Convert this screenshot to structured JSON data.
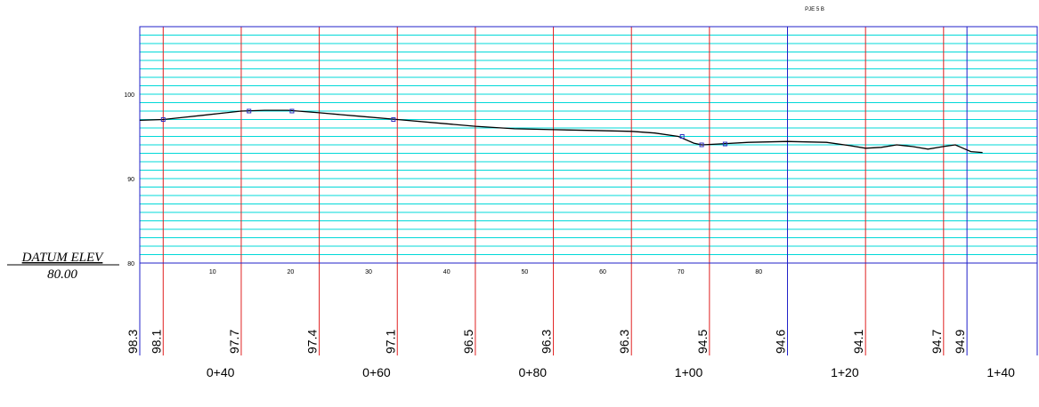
{
  "header_label": "PJE 5 B",
  "datum": {
    "label": "DATUM ELEV",
    "value": "80.00"
  },
  "colors": {
    "frame": "#2020c8",
    "fine_grid": "#00d8d8",
    "station_line": "#e02020",
    "ground_line": "#000000",
    "vertex": "#3030c0",
    "background": "#ffffff"
  },
  "chart_data": {
    "type": "line",
    "title": "",
    "xlabel": "",
    "ylabel": "",
    "elev_range": [
      80,
      108
    ],
    "elev_grid_interval": 1,
    "elev_tick_labels": [
      {
        "elev": 80,
        "text": "80"
      },
      {
        "elev": 90,
        "text": "90"
      },
      {
        "elev": 100,
        "text": "100"
      }
    ],
    "station_range": [
      30,
      145
    ],
    "station_tick_labels": [
      {
        "station": 40,
        "text": "0+40"
      },
      {
        "station": 60,
        "text": "0+60"
      },
      {
        "station": 80,
        "text": "0+80"
      },
      {
        "station": 100,
        "text": "1+00"
      },
      {
        "station": 120,
        "text": "1+20"
      },
      {
        "station": 140,
        "text": "1+40"
      }
    ],
    "offset_ticks": [
      {
        "station": 40,
        "text": "10"
      },
      {
        "station": 50,
        "text": "20"
      },
      {
        "station": 60,
        "text": "30"
      },
      {
        "station": 70,
        "text": "40"
      },
      {
        "station": 80,
        "text": "50"
      },
      {
        "station": 90,
        "text": "60"
      },
      {
        "station": 100,
        "text": "70"
      },
      {
        "station": 110,
        "text": "80"
      }
    ],
    "station_lines": [
      {
        "station": 30,
        "color": "blue"
      },
      {
        "station": 33,
        "color": "red"
      },
      {
        "station": 43,
        "color": "red"
      },
      {
        "station": 53,
        "color": "red"
      },
      {
        "station": 63,
        "color": "red"
      },
      {
        "station": 73,
        "color": "red"
      },
      {
        "station": 83,
        "color": "red"
      },
      {
        "station": 93,
        "color": "red"
      },
      {
        "station": 103,
        "color": "red"
      },
      {
        "station": 113,
        "color": "blue"
      },
      {
        "station": 123,
        "color": "red"
      },
      {
        "station": 133,
        "color": "red"
      },
      {
        "station": 136,
        "color": "blue"
      }
    ],
    "elevation_readings": [
      {
        "station": 30,
        "text": "98.3"
      },
      {
        "station": 33,
        "text": "98.1"
      },
      {
        "station": 43,
        "text": "97.7"
      },
      {
        "station": 53,
        "text": "97.4"
      },
      {
        "station": 63,
        "text": "97.1"
      },
      {
        "station": 73,
        "text": "96.5"
      },
      {
        "station": 83,
        "text": "96.3"
      },
      {
        "station": 93,
        "text": "96.3"
      },
      {
        "station": 103,
        "text": "94.5"
      },
      {
        "station": 113,
        "text": "94.6"
      },
      {
        "station": 123,
        "text": "94.1"
      },
      {
        "station": 133,
        "text": "94.7"
      },
      {
        "station": 136,
        "text": "94.9"
      }
    ],
    "series": [
      {
        "points": [
          [
            30,
            96.9
          ],
          [
            33,
            97.0
          ],
          [
            35,
            97.2
          ],
          [
            38,
            97.5
          ],
          [
            43,
            98.0
          ],
          [
            46,
            98.1
          ],
          [
            49,
            98.1
          ],
          [
            53,
            97.8
          ],
          [
            58,
            97.4
          ],
          [
            63,
            97.0
          ],
          [
            68,
            96.6
          ],
          [
            73,
            96.2
          ],
          [
            78,
            95.9
          ],
          [
            83,
            95.8
          ],
          [
            88,
            95.7
          ],
          [
            93,
            95.6
          ],
          [
            96,
            95.4
          ],
          [
            99,
            95.0
          ],
          [
            101,
            94.2
          ],
          [
            102,
            94.0
          ],
          [
            104,
            94.1
          ],
          [
            108,
            94.3
          ],
          [
            113,
            94.4
          ],
          [
            118,
            94.3
          ],
          [
            121,
            93.9
          ],
          [
            123,
            93.6
          ],
          [
            125,
            93.7
          ],
          [
            127,
            94.0
          ],
          [
            129,
            93.8
          ],
          [
            131,
            93.5
          ],
          [
            133,
            93.8
          ],
          [
            134.5,
            94.0
          ],
          [
            135.5,
            93.6
          ],
          [
            136.5,
            93.2
          ],
          [
            138,
            93.1
          ]
        ]
      }
    ],
    "vertices": [
      [
        33,
        97.0
      ],
      [
        44,
        98.0
      ],
      [
        49.5,
        98.0
      ],
      [
        62.5,
        97.0
      ],
      [
        99.5,
        95.0
      ],
      [
        102,
        94.0
      ],
      [
        105,
        94.1
      ]
    ]
  }
}
